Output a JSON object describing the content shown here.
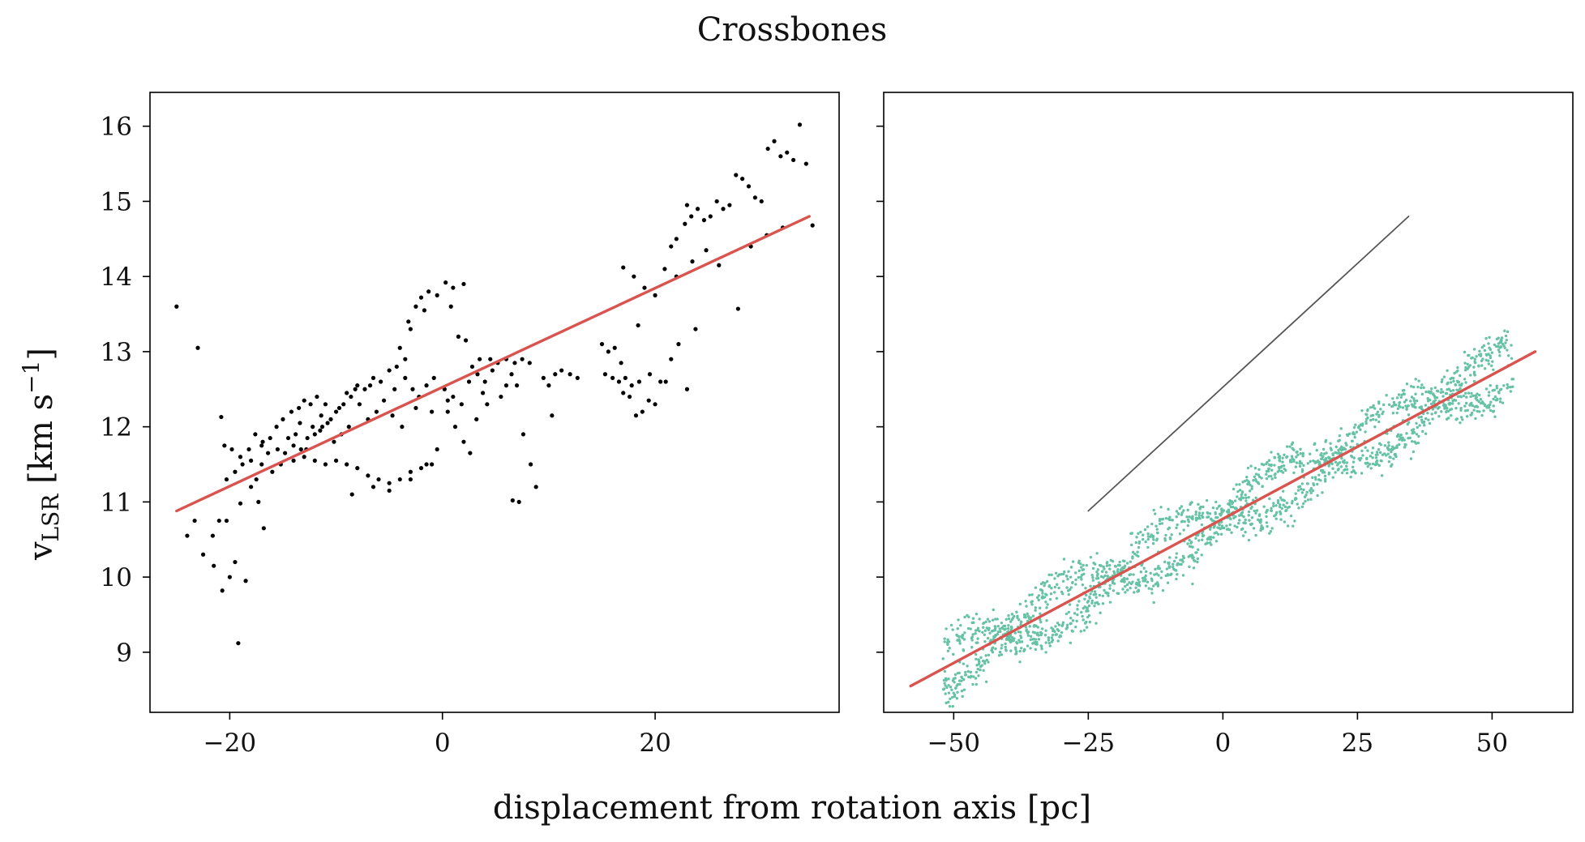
{
  "figure": {
    "title": "Crossbones",
    "xlabel": "displacement from rotation axis [pc]",
    "ylabel": {
      "main": "v",
      "subscript": "LSR",
      "unit_text": " [km s",
      "unit_exponent": "−1",
      "unit_close": "]"
    }
  },
  "colors": {
    "fit_line": "#d9534f",
    "left_points": "#000000",
    "right_points": "#66c2a5",
    "reference_line": "#555555"
  },
  "chart_data": [
    {
      "type": "scatter",
      "title": "",
      "xlim": [
        -27.5,
        37.3
      ],
      "ylim": [
        8.2,
        16.45
      ],
      "x_ticks": [
        -20,
        0,
        20
      ],
      "x_tick_labels": [
        "−20",
        "0",
        "20"
      ],
      "y_ticks": [
        9,
        10,
        11,
        12,
        13,
        14,
        15,
        16
      ],
      "y_tick_labels": [
        "9",
        "10",
        "11",
        "12",
        "13",
        "14",
        "15",
        "16"
      ],
      "grid": false,
      "series": [
        {
          "kind": "points",
          "color": "#000000",
          "points": [
            [
              -25.0,
              13.6
            ],
            [
              -23.0,
              13.05
            ],
            [
              -19.2,
              9.12
            ],
            [
              -18.5,
              9.95
            ],
            [
              -20.7,
              9.82
            ],
            [
              -20.0,
              10.0
            ],
            [
              -19.5,
              10.2
            ],
            [
              -21.5,
              10.15
            ],
            [
              -22.5,
              10.3
            ],
            [
              -24.0,
              10.55
            ],
            [
              -23.3,
              10.75
            ],
            [
              -21.0,
              10.75
            ],
            [
              -20.3,
              10.75
            ],
            [
              -21.6,
              10.55
            ],
            [
              -19.0,
              10.98
            ],
            [
              -18.0,
              11.2
            ],
            [
              -17.5,
              11.3
            ],
            [
              -16.8,
              10.65
            ],
            [
              -17.0,
              11.5
            ],
            [
              -16.0,
              11.4
            ],
            [
              -20.8,
              12.13
            ],
            [
              -20.5,
              11.75
            ],
            [
              -19.8,
              11.7
            ],
            [
              -19.0,
              11.6
            ],
            [
              -18.2,
              11.7
            ],
            [
              -17.6,
              11.9
            ],
            [
              -16.9,
              11.8
            ],
            [
              -16.2,
              11.85
            ],
            [
              -15.6,
              12.0
            ],
            [
              -15.0,
              12.1
            ],
            [
              -14.2,
              12.2
            ],
            [
              -13.5,
              12.25
            ],
            [
              -13.0,
              12.35
            ],
            [
              -12.4,
              12.3
            ],
            [
              -11.8,
              12.4
            ],
            [
              -15.5,
              11.7
            ],
            [
              -14.8,
              11.65
            ],
            [
              -14.0,
              11.75
            ],
            [
              -13.3,
              11.7
            ],
            [
              -12.7,
              11.85
            ],
            [
              -12.0,
              11.9
            ],
            [
              -11.3,
              12.0
            ],
            [
              -10.5,
              12.1
            ],
            [
              -10.0,
              12.2
            ],
            [
              -9.3,
              12.3
            ],
            [
              -8.6,
              12.4
            ],
            [
              -8.0,
              12.55
            ],
            [
              -7.3,
              12.5
            ],
            [
              -6.5,
              12.65
            ],
            [
              -5.8,
              12.6
            ],
            [
              -5.0,
              12.75
            ],
            [
              -4.3,
              12.8
            ],
            [
              -3.5,
              12.65
            ],
            [
              -2.8,
              12.5
            ],
            [
              -2.2,
              12.4
            ],
            [
              -1.5,
              12.55
            ],
            [
              -0.8,
              12.65
            ],
            [
              -13.0,
              11.6
            ],
            [
              -12.0,
              11.55
            ],
            [
              -11.0,
              11.5
            ],
            [
              -10.0,
              11.55
            ],
            [
              -9.0,
              11.5
            ],
            [
              -8.0,
              11.45
            ],
            [
              -7.0,
              11.35
            ],
            [
              -6.0,
              11.3
            ],
            [
              -5.0,
              11.25
            ],
            [
              -4.0,
              11.3
            ],
            [
              -3.0,
              11.4
            ],
            [
              -2.0,
              11.45
            ],
            [
              -1.0,
              11.5
            ],
            [
              -8.5,
              11.1
            ],
            [
              -6.5,
              11.2
            ],
            [
              -5.0,
              11.15
            ],
            [
              -3.0,
              11.3
            ],
            [
              -1.5,
              11.5
            ],
            [
              -0.5,
              11.7
            ],
            [
              -3.5,
              12.9
            ],
            [
              -3.0,
              13.3
            ],
            [
              -2.5,
              13.6
            ],
            [
              -2.0,
              13.72
            ],
            [
              -1.3,
              13.8
            ],
            [
              -0.5,
              13.75
            ],
            [
              0.3,
              13.92
            ],
            [
              1.0,
              13.85
            ],
            [
              2.0,
              13.9
            ],
            [
              -4.0,
              13.05
            ],
            [
              -3.2,
              13.4
            ],
            [
              -1.7,
              13.55
            ],
            [
              0.8,
              13.6
            ],
            [
              1.5,
              13.2
            ],
            [
              2.2,
              13.15
            ],
            [
              0.2,
              12.5
            ],
            [
              1.0,
              12.4
            ],
            [
              1.8,
              12.3
            ],
            [
              2.5,
              12.6
            ],
            [
              3.3,
              12.7
            ],
            [
              4.0,
              12.6
            ],
            [
              4.7,
              12.75
            ],
            [
              3.5,
              12.9
            ],
            [
              2.8,
              12.8
            ],
            [
              0.5,
              12.2
            ],
            [
              1.2,
              12.0
            ],
            [
              2.0,
              11.8
            ],
            [
              2.6,
              11.65
            ],
            [
              3.2,
              12.1
            ],
            [
              4.5,
              12.9
            ],
            [
              5.2,
              12.85
            ],
            [
              6.0,
              12.9
            ],
            [
              6.8,
              12.85
            ],
            [
              7.5,
              12.9
            ],
            [
              8.2,
              12.85
            ],
            [
              6.5,
              12.7
            ],
            [
              7.0,
              12.55
            ],
            [
              7.6,
              11.9
            ],
            [
              8.3,
              11.5
            ],
            [
              8.8,
              11.2
            ],
            [
              6.6,
              11.02
            ],
            [
              7.2,
              11.0
            ],
            [
              9.5,
              12.65
            ],
            [
              10.0,
              12.55
            ],
            [
              10.6,
              12.7
            ],
            [
              11.2,
              12.75
            ],
            [
              12.0,
              12.7
            ],
            [
              12.7,
              12.65
            ],
            [
              10.3,
              12.15
            ],
            [
              15.0,
              13.1
            ],
            [
              15.6,
              13.0
            ],
            [
              16.2,
              13.05
            ],
            [
              16.8,
              12.85
            ],
            [
              15.3,
              12.7
            ],
            [
              16.0,
              12.65
            ],
            [
              16.6,
              12.6
            ],
            [
              17.2,
              12.65
            ],
            [
              17.8,
              12.55
            ],
            [
              18.5,
              12.6
            ],
            [
              17.0,
              12.45
            ],
            [
              17.6,
              12.4
            ],
            [
              18.2,
              12.15
            ],
            [
              18.8,
              12.2
            ],
            [
              19.4,
              12.35
            ],
            [
              20.0,
              12.3
            ],
            [
              20.5,
              12.6
            ],
            [
              21.0,
              12.6
            ],
            [
              19.5,
              12.7
            ],
            [
              18.4,
              13.35
            ],
            [
              17.0,
              14.12
            ],
            [
              18.0,
              14.0
            ],
            [
              19.0,
              13.85
            ],
            [
              20.0,
              13.75
            ],
            [
              20.9,
              14.1
            ],
            [
              21.5,
              14.4
            ],
            [
              22.0,
              14.5
            ],
            [
              22.8,
              14.7
            ],
            [
              23.4,
              14.8
            ],
            [
              24.0,
              14.9
            ],
            [
              24.6,
              14.75
            ],
            [
              25.2,
              14.8
            ],
            [
              25.8,
              15.0
            ],
            [
              26.4,
              14.9
            ],
            [
              27.0,
              14.95
            ],
            [
              27.6,
              15.35
            ],
            [
              28.2,
              15.3
            ],
            [
              28.8,
              15.2
            ],
            [
              29.4,
              15.05
            ],
            [
              30.0,
              15.0
            ],
            [
              30.6,
              15.7
            ],
            [
              31.2,
              15.8
            ],
            [
              31.8,
              15.6
            ],
            [
              32.4,
              15.65
            ],
            [
              33.0,
              15.55
            ],
            [
              33.6,
              16.02
            ],
            [
              34.2,
              15.5
            ],
            [
              34.8,
              14.68
            ],
            [
              32.0,
              14.65
            ],
            [
              30.5,
              14.55
            ],
            [
              29.0,
              14.4
            ],
            [
              27.8,
              13.57
            ],
            [
              23.0,
              14.95
            ],
            [
              23.5,
              14.2
            ],
            [
              24.8,
              14.35
            ],
            [
              26.0,
              14.15
            ],
            [
              22.0,
              14.0
            ],
            [
              23.0,
              12.5
            ],
            [
              21.5,
              12.9
            ],
            [
              22.2,
              13.1
            ],
            [
              23.8,
              13.3
            ],
            [
              -11.5,
              11.95
            ],
            [
              -10.8,
              12.05
            ],
            [
              -9.7,
              12.25
            ],
            [
              -7.8,
              12.3
            ],
            [
              -7.0,
              12.1
            ],
            [
              -6.2,
              12.2
            ],
            [
              -5.5,
              12.35
            ],
            [
              -4.7,
              12.15
            ],
            [
              -3.8,
              12.0
            ],
            [
              -14.5,
              11.85
            ],
            [
              -13.8,
              11.9
            ],
            [
              -12.2,
              12.0
            ],
            [
              -11.4,
              12.15
            ],
            [
              -10.2,
              11.8
            ],
            [
              -9.5,
              11.9
            ],
            [
              -8.8,
              12.0
            ],
            [
              -17.0,
              11.75
            ],
            [
              -16.4,
              11.65
            ],
            [
              -18.8,
              11.5
            ],
            [
              -18.0,
              11.55
            ],
            [
              -19.5,
              11.4
            ],
            [
              -20.3,
              11.3
            ],
            [
              -17.3,
              11.0
            ],
            [
              -15.2,
              11.5
            ],
            [
              -14.0,
              11.55
            ],
            [
              -12.8,
              11.7
            ],
            [
              -13.4,
              12.05
            ],
            [
              -11.0,
              12.3
            ],
            [
              -9.0,
              12.45
            ],
            [
              -8.2,
              12.5
            ],
            [
              -6.8,
              12.55
            ],
            [
              -4.5,
              12.5
            ],
            [
              -2.5,
              12.25
            ],
            [
              -1.0,
              12.2
            ],
            [
              0.5,
              12.35
            ],
            [
              5.5,
              12.4
            ],
            [
              6.0,
              12.55
            ],
            [
              4.2,
              12.3
            ],
            [
              3.8,
              12.45
            ]
          ]
        },
        {
          "kind": "line",
          "name": "",
          "color": "#d9534f",
          "x": [
            -25,
            34.5
          ],
          "y": [
            10.88,
            14.8
          ]
        }
      ]
    },
    {
      "type": "scatter",
      "title": "",
      "xlim": [
        -63,
        65
      ],
      "ylim": [
        8.2,
        16.45
      ],
      "x_ticks": [
        -50,
        -25,
        0,
        25,
        50
      ],
      "x_tick_labels": [
        "−50",
        "−25",
        "0",
        "25",
        "50"
      ],
      "y_ticks": [
        9,
        10,
        11,
        12,
        13,
        14,
        15,
        16
      ],
      "y_tick_labels": [
        "",
        "",
        "",
        "",
        "",
        "",
        "",
        ""
      ],
      "grid": false,
      "model": {
        "x_range": [
          -52,
          54
        ],
        "trend_intercept": 10.78,
        "trend_slope": 0.0383,
        "wave_amplitude": 0.32,
        "wave_period": 40,
        "n_points": 1900
      },
      "series": [
        {
          "kind": "points",
          "color": "#66c2a5"
        },
        {
          "kind": "line",
          "name": "",
          "color": "#d9534f",
          "x": [
            -58,
            58
          ],
          "y": [
            8.55,
            13.0
          ]
        },
        {
          "kind": "line",
          "name": "",
          "color": "#555555",
          "x": [
            -25,
            34.5
          ],
          "y": [
            10.88,
            14.8
          ]
        }
      ]
    }
  ]
}
